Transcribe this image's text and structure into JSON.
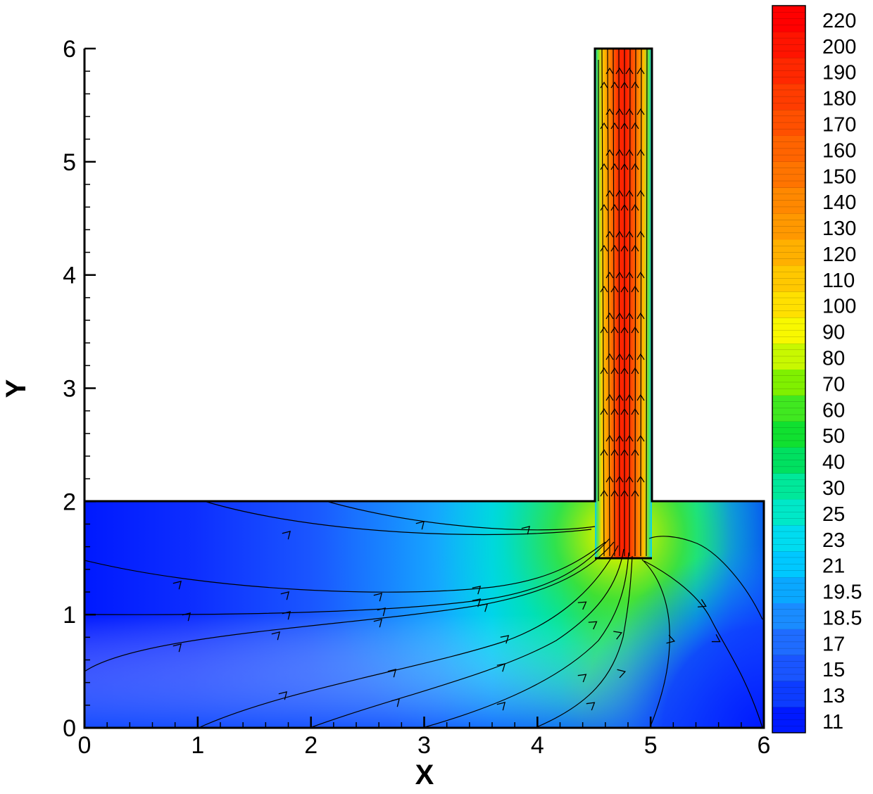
{
  "chart_data": {
    "type": "heatmap",
    "title": "",
    "xlabel": "X",
    "ylabel": "Y",
    "xlim": [
      0,
      6
    ],
    "ylim": [
      0,
      6
    ],
    "x_ticks": [
      "0",
      "1",
      "2",
      "3",
      "4",
      "5",
      "6"
    ],
    "y_ticks": [
      "0",
      "1",
      "2",
      "3",
      "4",
      "5",
      "6"
    ],
    "domain": {
      "lower_channel": {
        "x": [
          0,
          6
        ],
        "y": [
          0,
          2
        ]
      },
      "outlet_pipe": {
        "x": [
          4.5,
          5
        ],
        "y": [
          1.5,
          6
        ]
      }
    },
    "colorbar": {
      "levels": [
        "11",
        "13",
        "15",
        "17",
        "18.5",
        "19.5",
        "21",
        "23",
        "25",
        "30",
        "40",
        "50",
        "60",
        "70",
        "80",
        "90",
        "100",
        "110",
        "120",
        "130",
        "140",
        "150",
        "160",
        "170",
        "180",
        "190",
        "200",
        "220"
      ],
      "colors": [
        "#0019ff",
        "#0d3cff",
        "#1a55ff",
        "#1f6cff",
        "#1a8cff",
        "#0aa8ff",
        "#00c8ff",
        "#00dcf0",
        "#00e8c8",
        "#00e89a",
        "#00e060",
        "#10e030",
        "#40e820",
        "#80f000",
        "#c8f800",
        "#f8f800",
        "#ffe000",
        "#ffc800",
        "#ffb000",
        "#ff9800",
        "#ff8800",
        "#ff7400",
        "#ff6400",
        "#ff5000",
        "#ff3c00",
        "#ff2800",
        "#ff1400",
        "#ff0000"
      ]
    }
  }
}
